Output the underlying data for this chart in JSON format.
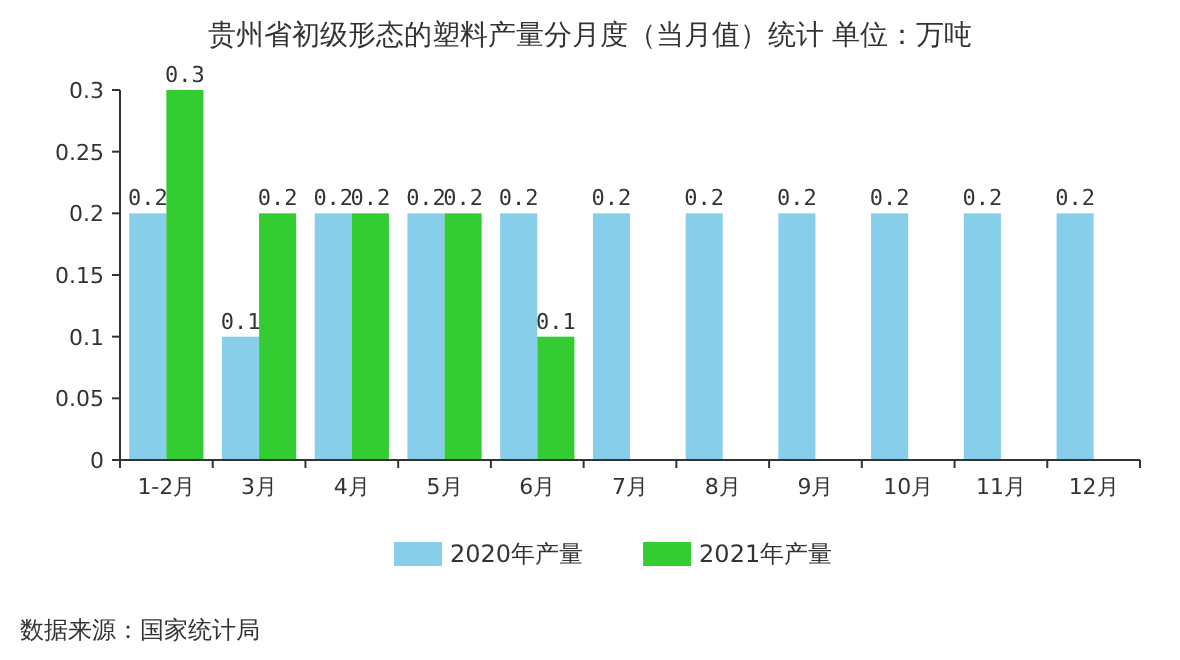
{
  "chart_data": {
    "type": "bar",
    "title": "贵州省初级形态的塑料产量分月度（当月值）统计 单位：万吨",
    "categories": [
      "1-2月",
      "3月",
      "4月",
      "5月",
      "6月",
      "7月",
      "8月",
      "9月",
      "10月",
      "11月",
      "12月"
    ],
    "series": [
      {
        "name": "2020年产量",
        "color": "#87ceeb",
        "values": [
          0.2,
          0.1,
          0.2,
          0.2,
          0.2,
          0.2,
          0.2,
          0.2,
          0.2,
          0.2,
          0.2
        ]
      },
      {
        "name": "2021年产量",
        "color": "#33cc33",
        "values": [
          0.3,
          0.2,
          0.2,
          0.2,
          0.1,
          null,
          null,
          null,
          null,
          null,
          null
        ]
      }
    ],
    "ylim": [
      0,
      0.3
    ],
    "yticks": [
      0,
      0.05,
      0.1,
      0.15,
      0.2,
      0.25,
      0.3
    ],
    "data_labels": true,
    "legend": "bottom",
    "grid": false,
    "annotations": [
      "数据来源：国家统计局"
    ]
  }
}
